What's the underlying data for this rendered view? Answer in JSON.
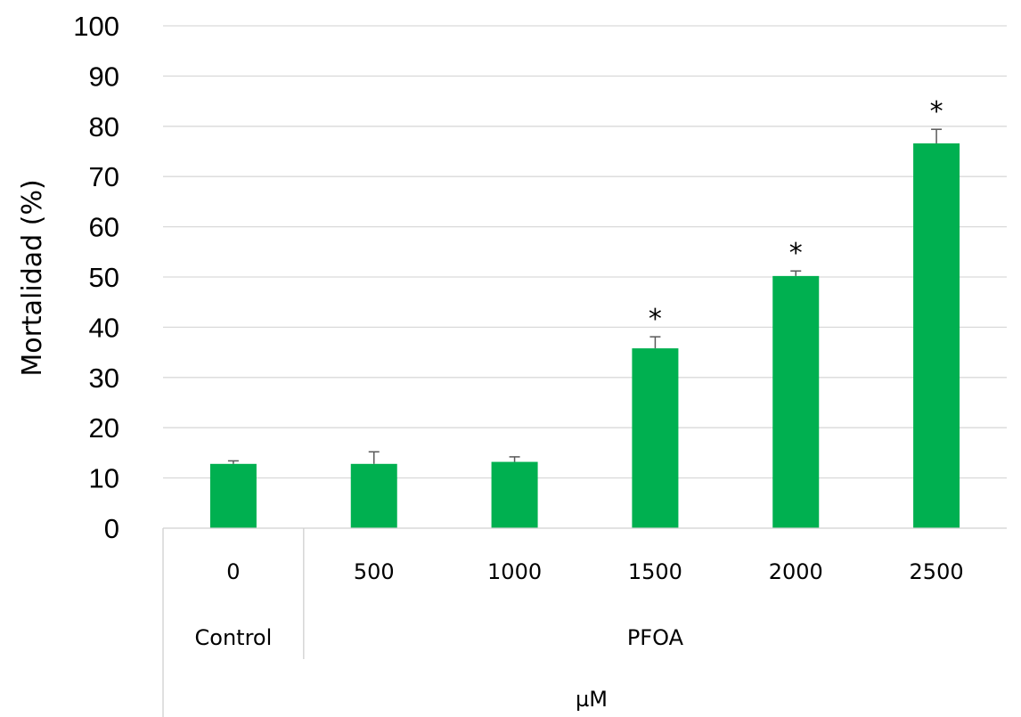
{
  "chart_data": {
    "type": "bar",
    "ylabel": "Mortalidad (%)",
    "xlabel": "µM",
    "ylim": [
      0,
      100
    ],
    "yticks": [
      "0",
      "10",
      "20",
      "30",
      "40",
      "50",
      "60",
      "70",
      "80",
      "90",
      "100"
    ],
    "grid": true,
    "bar_color": "#00b050",
    "categories": [
      "0",
      "500",
      "1000",
      "1500",
      "2000",
      "2500"
    ],
    "groups": [
      {
        "label": "Control",
        "categories": [
          "0"
        ]
      },
      {
        "label": "PFOA",
        "categories": [
          "500",
          "1000",
          "1500",
          "2000",
          "2500"
        ]
      }
    ],
    "values": [
      12.8,
      12.8,
      13.2,
      35.8,
      50.2,
      76.6
    ],
    "error": [
      0.6,
      2.4,
      1.0,
      2.3,
      1.0,
      2.8
    ],
    "significance": [
      "",
      "",
      "",
      "*",
      "*",
      "*"
    ]
  }
}
